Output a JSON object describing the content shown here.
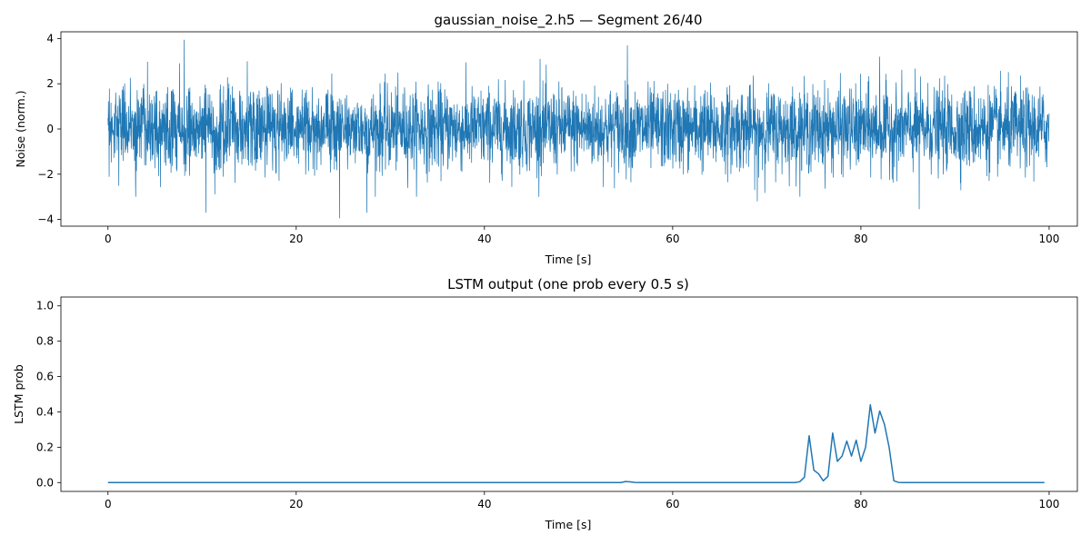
{
  "chart_data": [
    {
      "type": "line",
      "title": "gaussian_noise_2.h5 — Segment 26/40",
      "xlabel": "Time [s]",
      "ylabel": "Noise (norm.)",
      "xlim": [
        -5,
        103
      ],
      "ylim": [
        -4.3,
        4.3
      ],
      "xticks": [
        0,
        20,
        40,
        60,
        80,
        100
      ],
      "xtick_labels": [
        "0",
        "20",
        "40",
        "60",
        "80",
        "100"
      ],
      "yticks": [
        -4,
        -2,
        0,
        2,
        4
      ],
      "ytick_labels": [
        "−4",
        "−2",
        "0",
        "2",
        "4"
      ],
      "grid": false,
      "color": "#1f77b4",
      "series": [
        {
          "name": "noise",
          "description": "dense gaussian noise, std ≈ 0.9, 0 to 100 s",
          "x_range": [
            0,
            100
          ],
          "n_points": 4000,
          "std": 0.9,
          "peaks": [
            {
              "x": 8.1,
              "y": 3.95
            },
            {
              "x": 55.2,
              "y": 3.7
            },
            {
              "x": 10.4,
              "y": -3.7
            },
            {
              "x": 24.6,
              "y": -3.95
            },
            {
              "x": 27.5,
              "y": -3.7
            },
            {
              "x": 86.2,
              "y": -3.55
            },
            {
              "x": 82.0,
              "y": 3.2
            },
            {
              "x": 14.8,
              "y": 3.0
            },
            {
              "x": 45.9,
              "y": 3.1
            },
            {
              "x": 69.0,
              "y": -3.2
            }
          ]
        }
      ]
    },
    {
      "type": "line",
      "title": "LSTM output (one prob every 0.5 s)",
      "xlabel": "Time [s]",
      "ylabel": "LSTM prob",
      "xlim": [
        -5,
        103
      ],
      "ylim": [
        -0.05,
        1.05
      ],
      "xticks": [
        0,
        20,
        40,
        60,
        80,
        100
      ],
      "xtick_labels": [
        "0",
        "20",
        "40",
        "60",
        "80",
        "100"
      ],
      "yticks": [
        0.0,
        0.2,
        0.4,
        0.6,
        0.8,
        1.0
      ],
      "ytick_labels": [
        "0.0",
        "0.2",
        "0.4",
        "0.6",
        "0.8",
        "1.0"
      ],
      "grid": false,
      "color": "#1f77b4",
      "series": [
        {
          "name": "LSTM prob",
          "x": [
            0,
            54.5,
            55.0,
            55.5,
            56.0,
            56.5,
            73.0,
            73.5,
            74.0,
            74.5,
            75.0,
            75.5,
            76.0,
            76.5,
            77.0,
            77.5,
            78.0,
            78.5,
            79.0,
            79.5,
            80.0,
            80.5,
            81.0,
            81.5,
            82.0,
            82.5,
            83.0,
            83.5,
            84.0,
            84.5,
            99.5
          ],
          "y": [
            0.0,
            0.0,
            0.006,
            0.004,
            0.001,
            0.0,
            0.0,
            0.005,
            0.03,
            0.265,
            0.07,
            0.05,
            0.01,
            0.035,
            0.28,
            0.12,
            0.15,
            0.235,
            0.15,
            0.24,
            0.12,
            0.2,
            0.44,
            0.28,
            0.405,
            0.33,
            0.2,
            0.01,
            0.001,
            0.0,
            0.0
          ]
        }
      ]
    }
  ]
}
